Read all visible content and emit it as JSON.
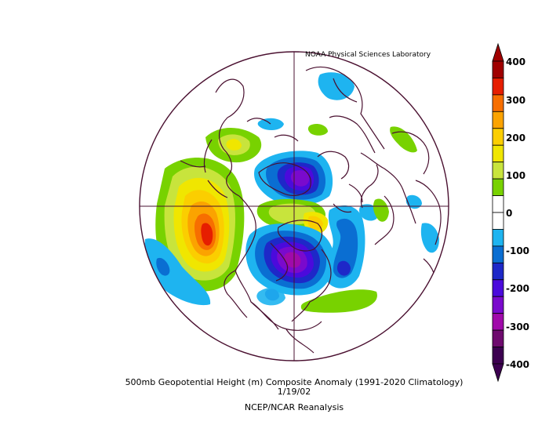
{
  "credit": "NOAA Physical Sciences Laboratory",
  "caption": {
    "line1": "500mb Geopotential Height (m) Composite Anomaly (1991-2020 Climatology)",
    "line2": "1/19/02",
    "line3": "NCEP/NCAR Reanalysis"
  },
  "colorbar": {
    "labels": [
      "400",
      "300",
      "200",
      "100",
      "0",
      "-100",
      "-200",
      "-300",
      "-400"
    ],
    "colors": [
      "#a00000",
      "#e61e00",
      "#f76e00",
      "#fba300",
      "#fbce00",
      "#f0e600",
      "#c8e43c",
      "#78d200",
      "#ffffff",
      "#ffffff",
      "#1eb4f0",
      "#0a6ed2",
      "#1e28c8",
      "#4b0adc",
      "#7a0acd",
      "#a00aaa",
      "#6e0a6e",
      "#3c0050"
    ]
  },
  "anomalies": [
    {
      "name": "pacific-ridge",
      "sign": "positive",
      "peak": 400
    },
    {
      "name": "hudson-trough",
      "sign": "negative",
      "peak": -350
    },
    {
      "name": "arctic-low",
      "sign": "negative",
      "peak": -300
    },
    {
      "name": "atlantic-trough",
      "sign": "negative",
      "peak": -200
    },
    {
      "name": "north-atlantic-ridge",
      "sign": "positive",
      "peak": 200
    }
  ]
}
